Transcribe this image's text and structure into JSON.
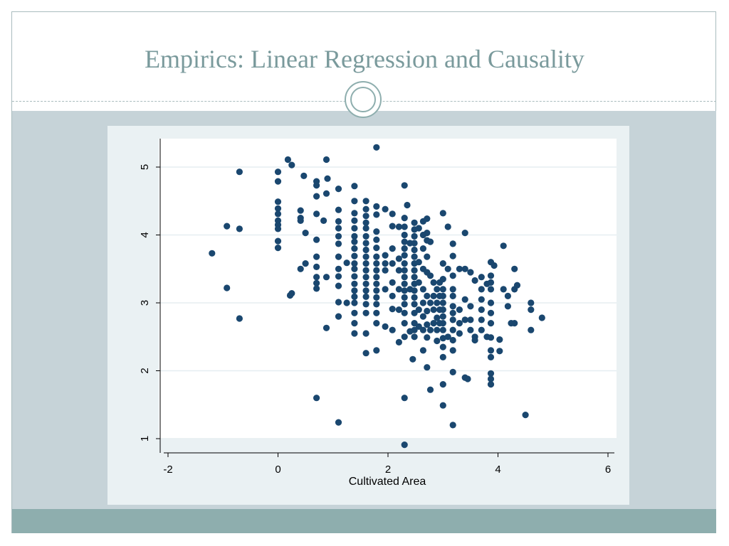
{
  "slide": {
    "title": "Empirics: Linear Regression and Causality",
    "colors": {
      "title": "#7a9a9c",
      "band": "#c6d3d8",
      "footer": "#8eaeae",
      "marker": "#1a476f"
    }
  },
  "chart_data": {
    "type": "scatter",
    "title": "",
    "xlabel": "Cultivated Area",
    "ylabel": "",
    "xlim": [
      -2.1,
      6.1
    ],
    "ylim": [
      0.8,
      5.4
    ],
    "xticks": [
      "-2",
      "0",
      "2",
      "4",
      "6"
    ],
    "yticks": [
      "1",
      "2",
      "3",
      "4",
      "5"
    ],
    "grid": true,
    "legend": "none",
    "points": [
      [
        -1.2,
        3.73
      ],
      [
        -0.93,
        4.13
      ],
      [
        -0.93,
        3.22
      ],
      [
        -0.7,
        4.93
      ],
      [
        -0.7,
        4.09
      ],
      [
        -0.7,
        2.77
      ],
      [
        0,
        4.93
      ],
      [
        0,
        4.79
      ],
      [
        0,
        4.49
      ],
      [
        0,
        4.39
      ],
      [
        0,
        4.31
      ],
      [
        0,
        4.21
      ],
      [
        0,
        4.15
      ],
      [
        0,
        4.09
      ],
      [
        0,
        3.91
      ],
      [
        0,
        3.81
      ],
      [
        0.18,
        5.11
      ],
      [
        0.25,
        5.03
      ],
      [
        0.22,
        3.11
      ],
      [
        0.25,
        3.14
      ],
      [
        0.41,
        4.36
      ],
      [
        0.41,
        4.25
      ],
      [
        0.41,
        4.21
      ],
      [
        0.41,
        3.5
      ],
      [
        0.47,
        4.87
      ],
      [
        0.5,
        4.03
      ],
      [
        0.5,
        3.58
      ],
      [
        0.7,
        4.79
      ],
      [
        0.7,
        4.73
      ],
      [
        0.7,
        4.57
      ],
      [
        0.7,
        4.31
      ],
      [
        0.7,
        3.93
      ],
      [
        0.7,
        3.68
      ],
      [
        0.7,
        3.53
      ],
      [
        0.7,
        3.38
      ],
      [
        0.7,
        3.29
      ],
      [
        0.7,
        3.21
      ],
      [
        0.7,
        1.6
      ],
      [
        0.83,
        4.21
      ],
      [
        0.88,
        5.11
      ],
      [
        0.88,
        4.61
      ],
      [
        0.88,
        3.38
      ],
      [
        0.88,
        2.63
      ],
      [
        0.9,
        4.83
      ],
      [
        1.1,
        4.68
      ],
      [
        1.1,
        4.37
      ],
      [
        1.1,
        4.2
      ],
      [
        1.1,
        4.1
      ],
      [
        1.1,
        3.98
      ],
      [
        1.1,
        3.87
      ],
      [
        1.1,
        3.68
      ],
      [
        1.1,
        3.5
      ],
      [
        1.1,
        3.39
      ],
      [
        1.1,
        3.25
      ],
      [
        1.1,
        3.01
      ],
      [
        1.1,
        2.8
      ],
      [
        1.1,
        1.24
      ],
      [
        1.25,
        3.59
      ],
      [
        1.25,
        3.0
      ],
      [
        1.39,
        4.72
      ],
      [
        1.39,
        4.5
      ],
      [
        1.39,
        4.32
      ],
      [
        1.39,
        4.21
      ],
      [
        1.39,
        4.1
      ],
      [
        1.39,
        3.98
      ],
      [
        1.39,
        3.9
      ],
      [
        1.39,
        3.8
      ],
      [
        1.39,
        3.69
      ],
      [
        1.39,
        3.58
      ],
      [
        1.39,
        3.5
      ],
      [
        1.39,
        3.39
      ],
      [
        1.39,
        3.28
      ],
      [
        1.39,
        3.18
      ],
      [
        1.39,
        3.09
      ],
      [
        1.39,
        3.0
      ],
      [
        1.39,
        2.85
      ],
      [
        1.39,
        2.7
      ],
      [
        1.39,
        2.55
      ],
      [
        1.6,
        4.5
      ],
      [
        1.6,
        4.38
      ],
      [
        1.6,
        4.28
      ],
      [
        1.6,
        4.18
      ],
      [
        1.6,
        4.1
      ],
      [
        1.6,
        3.98
      ],
      [
        1.6,
        3.88
      ],
      [
        1.6,
        3.78
      ],
      [
        1.6,
        3.68
      ],
      [
        1.6,
        3.58
      ],
      [
        1.6,
        3.48
      ],
      [
        1.6,
        3.38
      ],
      [
        1.6,
        3.28
      ],
      [
        1.6,
        3.18
      ],
      [
        1.6,
        3.09
      ],
      [
        1.6,
        2.98
      ],
      [
        1.6,
        2.85
      ],
      [
        1.6,
        2.55
      ],
      [
        1.6,
        2.26
      ],
      [
        1.79,
        5.29
      ],
      [
        1.79,
        4.42
      ],
      [
        1.79,
        4.3
      ],
      [
        1.79,
        4.05
      ],
      [
        1.79,
        3.93
      ],
      [
        1.79,
        3.81
      ],
      [
        1.79,
        3.68
      ],
      [
        1.79,
        3.58
      ],
      [
        1.79,
        3.48
      ],
      [
        1.79,
        3.38
      ],
      [
        1.79,
        3.28
      ],
      [
        1.79,
        3.18
      ],
      [
        1.79,
        3.08
      ],
      [
        1.79,
        2.98
      ],
      [
        1.79,
        2.85
      ],
      [
        1.79,
        2.7
      ],
      [
        1.79,
        2.3
      ],
      [
        1.95,
        4.38
      ],
      [
        1.95,
        3.7
      ],
      [
        1.95,
        3.58
      ],
      [
        1.95,
        3.48
      ],
      [
        1.95,
        3.2
      ],
      [
        1.95,
        2.65
      ],
      [
        2.08,
        4.31
      ],
      [
        2.08,
        4.13
      ],
      [
        2.08,
        3.8
      ],
      [
        2.08,
        3.58
      ],
      [
        2.08,
        3.3
      ],
      [
        2.08,
        3.1
      ],
      [
        2.08,
        2.91
      ],
      [
        2.08,
        2.6
      ],
      [
        2.2,
        4.12
      ],
      [
        2.2,
        3.65
      ],
      [
        2.2,
        3.48
      ],
      [
        2.2,
        3.2
      ],
      [
        2.2,
        2.9
      ],
      [
        2.2,
        2.42
      ],
      [
        2.3,
        4.73
      ],
      [
        2.3,
        4.25
      ],
      [
        2.3,
        4.12
      ],
      [
        2.3,
        4.0
      ],
      [
        2.3,
        3.9
      ],
      [
        2.3,
        3.8
      ],
      [
        2.3,
        3.7
      ],
      [
        2.3,
        3.58
      ],
      [
        2.3,
        3.48
      ],
      [
        2.3,
        3.38
      ],
      [
        2.3,
        3.28
      ],
      [
        2.3,
        3.18
      ],
      [
        2.3,
        3.08
      ],
      [
        2.3,
        2.98
      ],
      [
        2.3,
        2.85
      ],
      [
        2.3,
        2.7
      ],
      [
        2.3,
        2.5
      ],
      [
        2.3,
        1.6
      ],
      [
        2.3,
        0.91
      ],
      [
        2.35,
        4.44
      ],
      [
        2.4,
        3.88
      ],
      [
        2.4,
        3.2
      ],
      [
        2.4,
        2.58
      ],
      [
        2.45,
        2.17
      ],
      [
        2.48,
        4.18
      ],
      [
        2.48,
        4.08
      ],
      [
        2.48,
        3.98
      ],
      [
        2.48,
        3.88
      ],
      [
        2.48,
        3.78
      ],
      [
        2.48,
        3.68
      ],
      [
        2.48,
        3.58
      ],
      [
        2.48,
        3.48
      ],
      [
        2.48,
        3.38
      ],
      [
        2.48,
        3.28
      ],
      [
        2.48,
        3.18
      ],
      [
        2.48,
        3.08
      ],
      [
        2.48,
        2.98
      ],
      [
        2.48,
        2.85
      ],
      [
        2.48,
        2.7
      ],
      [
        2.48,
        2.6
      ],
      [
        2.48,
        2.5
      ],
      [
        2.56,
        4.1
      ],
      [
        2.56,
        3.6
      ],
      [
        2.56,
        3.3
      ],
      [
        2.56,
        2.9
      ],
      [
        2.56,
        2.65
      ],
      [
        2.64,
        4.2
      ],
      [
        2.64,
        4.0
      ],
      [
        2.64,
        3.8
      ],
      [
        2.64,
        3.5
      ],
      [
        2.64,
        3.2
      ],
      [
        2.64,
        3.0
      ],
      [
        2.64,
        2.8
      ],
      [
        2.64,
        2.6
      ],
      [
        2.64,
        2.3
      ],
      [
        2.71,
        4.24
      ],
      [
        2.71,
        4.03
      ],
      [
        2.71,
        3.92
      ],
      [
        2.71,
        3.68
      ],
      [
        2.71,
        3.45
      ],
      [
        2.71,
        3.1
      ],
      [
        2.71,
        2.88
      ],
      [
        2.71,
        2.68
      ],
      [
        2.71,
        2.49
      ],
      [
        2.71,
        2.05
      ],
      [
        2.77,
        3.9
      ],
      [
        2.77,
        3.4
      ],
      [
        2.77,
        3.0
      ],
      [
        2.77,
        2.6
      ],
      [
        2.77,
        1.72
      ],
      [
        2.83,
        3.3
      ],
      [
        2.83,
        3.1
      ],
      [
        2.83,
        2.9
      ],
      [
        2.83,
        2.7
      ],
      [
        2.89,
        3.2
      ],
      [
        2.89,
        3.0
      ],
      [
        2.89,
        2.78
      ],
      [
        2.89,
        2.6
      ],
      [
        2.89,
        2.44
      ],
      [
        2.94,
        3.3
      ],
      [
        2.94,
        3.1
      ],
      [
        2.94,
        2.9
      ],
      [
        2.94,
        2.7
      ],
      [
        3.0,
        4.32
      ],
      [
        3.0,
        3.58
      ],
      [
        3.0,
        3.35
      ],
      [
        3.0,
        3.2
      ],
      [
        3.0,
        3.1
      ],
      [
        3.0,
        3.0
      ],
      [
        3.0,
        2.9
      ],
      [
        3.0,
        2.8
      ],
      [
        3.0,
        2.7
      ],
      [
        3.0,
        2.6
      ],
      [
        3.0,
        2.48
      ],
      [
        3.0,
        2.35
      ],
      [
        3.0,
        2.2
      ],
      [
        3.0,
        1.8
      ],
      [
        3.0,
        1.49
      ],
      [
        3.09,
        4.12
      ],
      [
        3.09,
        3.5
      ],
      [
        3.09,
        2.5
      ],
      [
        3.18,
        3.87
      ],
      [
        3.18,
        3.69
      ],
      [
        3.18,
        3.4
      ],
      [
        3.18,
        3.2
      ],
      [
        3.18,
        3.1
      ],
      [
        3.18,
        2.95
      ],
      [
        3.18,
        2.85
      ],
      [
        3.18,
        2.75
      ],
      [
        3.18,
        2.6
      ],
      [
        3.18,
        2.45
      ],
      [
        3.18,
        2.3
      ],
      [
        3.18,
        1.98
      ],
      [
        3.18,
        1.2
      ],
      [
        3.3,
        3.5
      ],
      [
        3.3,
        2.9
      ],
      [
        3.3,
        2.7
      ],
      [
        3.3,
        2.55
      ],
      [
        3.4,
        4.03
      ],
      [
        3.4,
        3.5
      ],
      [
        3.4,
        3.05
      ],
      [
        3.4,
        2.75
      ],
      [
        3.4,
        1.9
      ],
      [
        3.45,
        1.88
      ],
      [
        3.5,
        3.45
      ],
      [
        3.5,
        2.95
      ],
      [
        3.5,
        2.75
      ],
      [
        3.5,
        2.6
      ],
      [
        3.58,
        3.33
      ],
      [
        3.58,
        2.5
      ],
      [
        3.58,
        2.45
      ],
      [
        3.7,
        3.38
      ],
      [
        3.7,
        3.2
      ],
      [
        3.7,
        3.05
      ],
      [
        3.7,
        2.9
      ],
      [
        3.7,
        2.75
      ],
      [
        3.7,
        2.6
      ],
      [
        3.8,
        3.28
      ],
      [
        3.8,
        2.5
      ],
      [
        3.87,
        3.6
      ],
      [
        3.87,
        3.4
      ],
      [
        3.87,
        3.3
      ],
      [
        3.87,
        3.2
      ],
      [
        3.87,
        3.0
      ],
      [
        3.87,
        2.85
      ],
      [
        3.87,
        2.7
      ],
      [
        3.87,
        2.49
      ],
      [
        3.87,
        2.3
      ],
      [
        3.87,
        2.2
      ],
      [
        3.87,
        1.96
      ],
      [
        3.87,
        1.88
      ],
      [
        3.87,
        1.8
      ],
      [
        3.93,
        3.55
      ],
      [
        4.03,
        2.46
      ],
      [
        4.03,
        2.29
      ],
      [
        4.1,
        3.84
      ],
      [
        4.1,
        3.2
      ],
      [
        4.18,
        3.1
      ],
      [
        4.18,
        2.95
      ],
      [
        4.24,
        2.7
      ],
      [
        4.3,
        2.7
      ],
      [
        4.3,
        3.5
      ],
      [
        4.3,
        3.2
      ],
      [
        4.35,
        3.26
      ],
      [
        4.5,
        1.35
      ],
      [
        4.6,
        3.0
      ],
      [
        4.6,
        2.9
      ],
      [
        4.6,
        2.6
      ],
      [
        4.8,
        2.78
      ]
    ]
  }
}
